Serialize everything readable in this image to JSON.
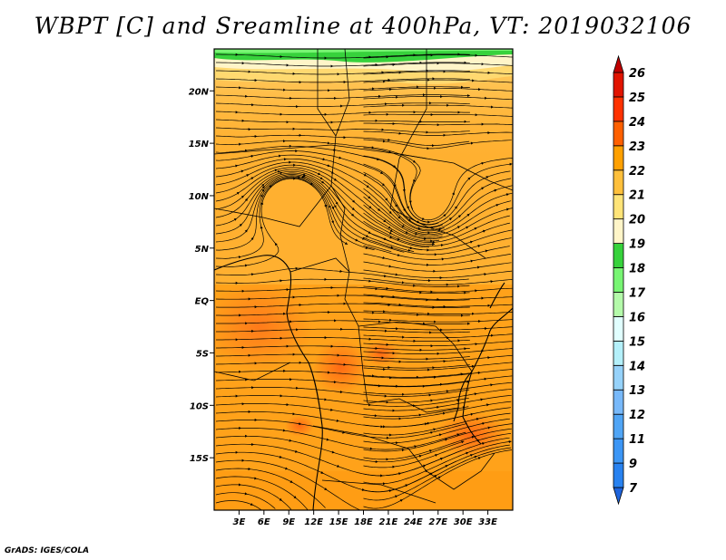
{
  "title": "WBPT [C] and Sreamline at 400hPa, VT: 2019032106",
  "credit": "GrADS: IGES/COLA",
  "chart_data": {
    "type": "heatmap",
    "title": "WBPT [C] and Sreamline at 400hPa, VT: 2019032106",
    "variable": "WBPT [C]",
    "overlay": "streamlines",
    "level": "400hPa",
    "valid_time": "2019032106",
    "grid": false,
    "legend_position": "right",
    "x_ticks": [
      "3E",
      "6E",
      "9E",
      "12E",
      "15E",
      "18E",
      "21E",
      "24E",
      "27E",
      "30E",
      "33E"
    ],
    "x_tick_values": [
      3,
      6,
      9,
      12,
      15,
      18,
      21,
      24,
      27,
      30,
      33
    ],
    "y_ticks": [
      "20N",
      "15N",
      "10N",
      "5N",
      "EQ",
      "5S",
      "10S",
      "15S"
    ],
    "y_tick_values": [
      20,
      15,
      10,
      5,
      0,
      -5,
      -10,
      -15
    ],
    "xlim": [
      0,
      36
    ],
    "ylim": [
      -20,
      24
    ],
    "colorbar": {
      "labels": [
        "7",
        "9",
        "11",
        "12",
        "13",
        "14",
        "15",
        "16",
        "17",
        "18",
        "19",
        "20",
        "21",
        "22",
        "23",
        "24",
        "25",
        "26"
      ],
      "colors": [
        "#1e64dc",
        "#2882f0",
        "#3c96f5",
        "#50a5f5",
        "#78b9fa",
        "#96d2fa",
        "#b4f0fa",
        "#e1ffff",
        "#b4faaa",
        "#78f573",
        "#37d23c",
        "#fff5c8",
        "#ffe478",
        "#ffc03c",
        "#ffa000",
        "#ff6000",
        "#ff3200",
        "#e11400",
        "#c00000"
      ]
    }
  }
}
